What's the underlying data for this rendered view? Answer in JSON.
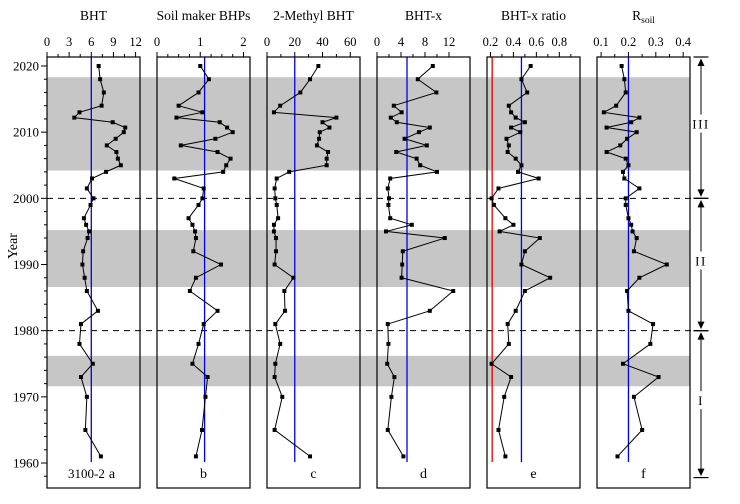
{
  "figure": {
    "ylabel": "Year",
    "sample_id": "3100-2",
    "colors": {
      "band": "#c6c6c6",
      "blue_ref": "#0000e0",
      "red_ref": "#e60000",
      "frame": "#000000",
      "series": "#000000"
    },
    "year_axis": {
      "labels": [
        "1960",
        "1970",
        "1980",
        "1990",
        "2000",
        "2010",
        "2020"
      ],
      "minor_step": 2
    },
    "dashed_years": [
      2000,
      1980
    ],
    "band_year_ranges": [
      [
        2018.3,
        2004.2
      ],
      [
        1995.2,
        1986.6
      ],
      [
        1976.2,
        1971.6
      ]
    ],
    "zones": [
      {
        "label": "III",
        "from": 2021.4,
        "to": 2000
      },
      {
        "label": "II",
        "from": 2000,
        "to": 1980
      },
      {
        "label": "I",
        "from": 1980,
        "to": 1957.8
      }
    ]
  },
  "chart_data": {
    "type": "line",
    "orientation": "vertical depth-series, year increases upward",
    "x_years": [
      1961,
      1965,
      1970,
      1973,
      1975,
      1978,
      1981,
      1983,
      1986,
      1988,
      1990,
      1992,
      1994,
      1995,
      1996,
      1997,
      1999,
      2000,
      2001.5,
      2003,
      2004,
      2005,
      2006,
      2007,
      2008,
      2009,
      2010,
      2010.7,
      2011.5,
      2012.2,
      2013,
      2014,
      2016,
      2018,
      2020
    ],
    "ylim": [
      1956.5,
      2021.4
    ],
    "panels": [
      {
        "letter": "a",
        "title": "BHT",
        "title_sub": "",
        "domain": [
          0,
          12.6
        ],
        "ticks": [
          0,
          3,
          6,
          9,
          12
        ],
        "tick_labels": [
          "0",
          "3",
          "6",
          "9",
          "12"
        ],
        "minor_ticks": [
          1.5,
          4.5,
          7.5,
          10.5
        ],
        "blue_ref": 6,
        "red_ref": null,
        "values": [
          7.3,
          5.2,
          5.4,
          4.6,
          6.2,
          4.4,
          4.6,
          6.9,
          5.4,
          5.1,
          4.8,
          4.9,
          5.5,
          5.7,
          5.3,
          5.0,
          5.9,
          6.3,
          5.4,
          6.1,
          8.0,
          10.0,
          9.6,
          9.4,
          8.1,
          9.3,
          10.4,
          10.6,
          8.9,
          3.7,
          4.4,
          7.4,
          7.7,
          7.2,
          7.0
        ]
      },
      {
        "letter": "b",
        "title": "Soil maker BHPs",
        "title_sub": "",
        "domain": [
          0,
          2.15
        ],
        "ticks": [
          0,
          1,
          2
        ],
        "tick_labels": [
          "0",
          "1",
          "2"
        ],
        "minor_ticks": [
          0.25,
          0.5,
          0.75,
          1.25,
          1.5,
          1.75
        ],
        "blue_ref": 1.1,
        "red_ref": null,
        "values": [
          0.9,
          1.04,
          1.12,
          1.17,
          0.82,
          0.96,
          1.08,
          1.4,
          0.76,
          0.9,
          1.48,
          0.84,
          0.9,
          0.88,
          0.82,
          0.73,
          0.96,
          1.05,
          1.08,
          0.4,
          1.53,
          1.6,
          1.7,
          1.4,
          0.55,
          1.35,
          1.75,
          1.62,
          1.45,
          0.45,
          1.05,
          0.5,
          0.96,
          1.2,
          1.0
        ]
      },
      {
        "letter": "c",
        "title": "2-Methyl BHT",
        "title_sub": "",
        "domain": [
          0,
          67
        ],
        "ticks": [
          0,
          20,
          40,
          60
        ],
        "tick_labels": [
          "0",
          "20",
          "40",
          "60"
        ],
        "minor_ticks": [
          10,
          30,
          50
        ],
        "blue_ref": 20,
        "red_ref": null,
        "values": [
          31,
          5.5,
          11,
          5.5,
          6,
          9.5,
          6,
          13,
          12.5,
          19,
          5.5,
          6.5,
          6.5,
          5,
          5,
          8,
          7,
          6,
          5.5,
          7,
          16,
          43,
          43,
          44,
          36,
          37.5,
          38,
          45,
          40,
          50,
          5,
          9.5,
          24,
          31,
          37
        ]
      },
      {
        "letter": "d",
        "title": "BHT-x",
        "title_sub": "",
        "domain": [
          0,
          15.5
        ],
        "ticks": [
          0,
          4,
          8,
          12
        ],
        "tick_labels": [
          "0",
          "4",
          "8",
          "12"
        ],
        "minor_ticks": [
          2,
          6,
          10
        ],
        "blue_ref": 5,
        "red_ref": null,
        "values": [
          4.4,
          1.8,
          2.4,
          2.9,
          1.7,
          1.9,
          1.8,
          8.8,
          12.7,
          4.1,
          4.2,
          4.3,
          11.3,
          1.5,
          5.8,
          2.2,
          1.9,
          2.0,
          1.8,
          2.2,
          10.0,
          7.2,
          6.6,
          3.2,
          8.3,
          4.6,
          7.0,
          8.8,
          3.3,
          2.3,
          4.1,
          2.8,
          9.9,
          6.8,
          9.3
        ]
      },
      {
        "letter": "e",
        "title": "BHT-x ratio",
        "title_sub": "",
        "domain": [
          0.17,
          0.98
        ],
        "ticks": [
          0.2,
          0.4,
          0.6,
          0.8
        ],
        "tick_labels": [
          "0.2",
          "0.4",
          "0.6",
          "0.8"
        ],
        "minor_ticks": [
          0.3,
          0.5,
          0.7,
          0.9
        ],
        "blue_ref": 0.47,
        "red_ref": 0.215,
        "values": [
          0.33,
          0.27,
          0.32,
          0.38,
          0.21,
          0.36,
          0.35,
          0.42,
          0.5,
          0.72,
          0.47,
          0.5,
          0.63,
          0.28,
          0.4,
          0.33,
          0.23,
          0.21,
          0.27,
          0.62,
          0.44,
          0.47,
          0.42,
          0.35,
          0.36,
          0.34,
          0.46,
          0.38,
          0.5,
          0.42,
          0.38,
          0.36,
          0.52,
          0.47,
          0.55
        ]
      },
      {
        "letter": "f",
        "title": "R",
        "title_sub": "soil",
        "domain": [
          0.085,
          0.425
        ],
        "ticks": [
          0.1,
          0.2,
          0.3,
          0.4
        ],
        "tick_labels": [
          "0.1",
          "0.2",
          "0.3",
          "0.4"
        ],
        "minor_ticks": [
          0.15,
          0.25,
          0.35
        ],
        "blue_ref": 0.2,
        "red_ref": null,
        "values": [
          0.16,
          0.25,
          0.22,
          0.31,
          0.18,
          0.28,
          0.29,
          0.2,
          0.195,
          0.24,
          0.34,
          0.22,
          0.23,
          0.215,
          0.21,
          0.2,
          0.19,
          0.19,
          0.24,
          0.185,
          0.18,
          0.2,
          0.19,
          0.12,
          0.17,
          0.195,
          0.23,
          0.12,
          0.21,
          0.24,
          0.11,
          0.155,
          0.19,
          0.185,
          0.175
        ]
      }
    ]
  }
}
